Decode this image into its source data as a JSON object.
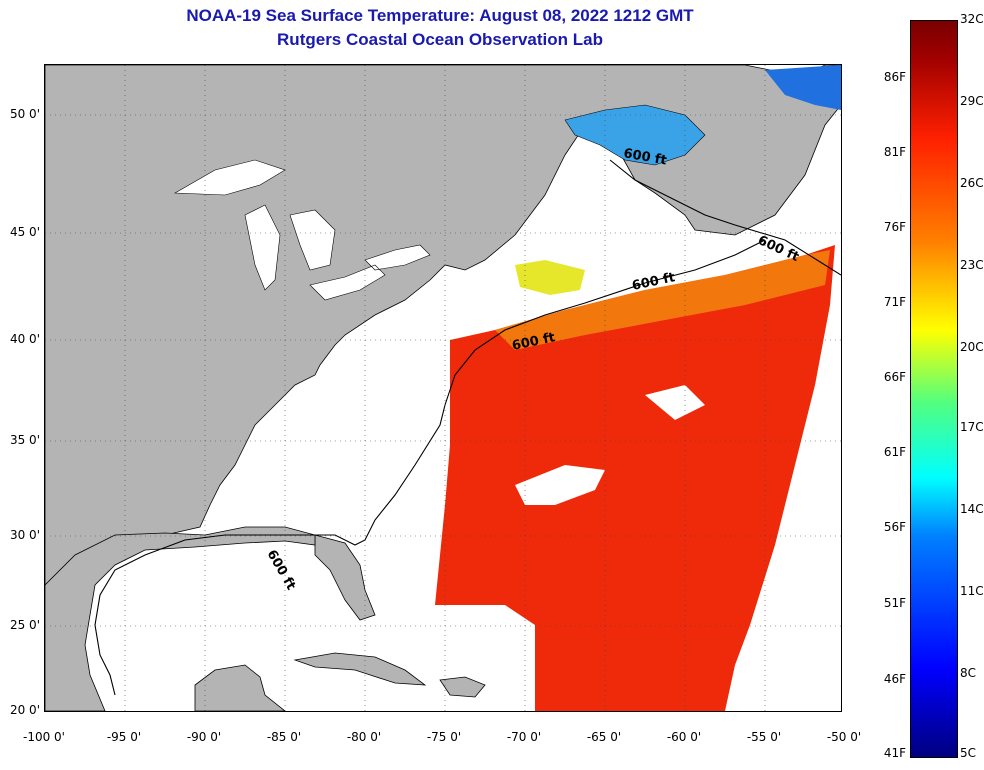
{
  "title_line1": "NOAA-19 Sea Surface Temperature:  August 08, 2022 1212 GMT",
  "title_line2": "Rutgers Coastal Ocean Observation Lab",
  "map": {
    "lon_range": [
      -100,
      -50
    ],
    "lat_range": [
      20,
      52.5
    ],
    "lat_ticks": [
      "50 0'",
      "45 0'",
      "40 0'",
      "35 0'",
      "30 0'",
      "25 0'",
      "20 0'"
    ],
    "lon_ticks": [
      "-100 0'",
      "-95 0'",
      "-90 0'",
      "-85 0'",
      "-80 0'",
      "-75 0'",
      "-70 0'",
      "-65 0'",
      "-60 0'",
      "-55 0'",
      "-50 0'"
    ],
    "contour_labels": [
      "600 ft",
      "600 ft",
      "600 ft",
      "600 ft",
      "600 ft"
    ],
    "colors": {
      "land": "#b4b4b4",
      "no_data": "#ffffff",
      "water_warm": "#ee2a0a"
    }
  },
  "colorbar": {
    "celsius": [
      "32C",
      "29C",
      "26C",
      "23C",
      "20C",
      "17C",
      "14C",
      "11C",
      "8C",
      "5C"
    ],
    "fahrenheit": [
      "86F",
      "81F",
      "76F",
      "71F",
      "66F",
      "61F",
      "56F",
      "51F",
      "46F",
      "41F"
    ],
    "scale_colors": [
      "#000080",
      "#0000ff",
      "#0080ff",
      "#00ffff",
      "#50ff80",
      "#ffff00",
      "#ff8000",
      "#ff2000",
      "#a00000"
    ]
  }
}
